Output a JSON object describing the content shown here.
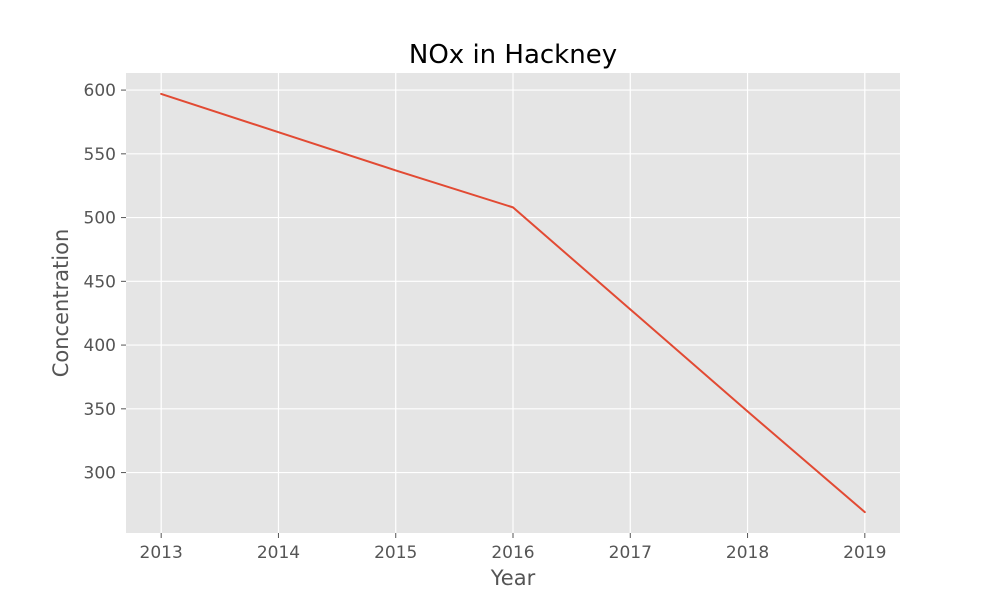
{
  "chart_data": {
    "type": "line",
    "title": "NOx in Hackney",
    "xlabel": "Year",
    "ylabel": "Concentration",
    "x": [
      2013,
      2014,
      2015,
      2016,
      2017,
      2018,
      2019
    ],
    "series": [
      {
        "values": [
          597,
          567,
          537,
          508,
          428,
          348,
          269
        ],
        "color": "#E24A33"
      }
    ],
    "xlim": [
      2012.7,
      2019.3
    ],
    "ylim": [
      252.6,
      613.4
    ],
    "xticks": [
      2013,
      2014,
      2015,
      2016,
      2017,
      2018,
      2019
    ],
    "yticks": [
      300,
      350,
      400,
      450,
      500,
      550,
      600
    ],
    "grid": true,
    "style": {
      "plot_background": "#E5E5E5",
      "grid_color": "#FFFFFF",
      "tick_color": "#555555"
    }
  }
}
